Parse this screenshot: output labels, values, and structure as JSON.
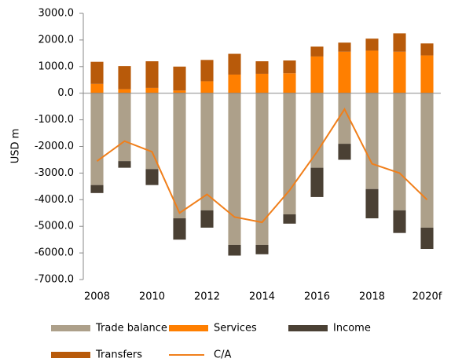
{
  "chart_data": {
    "type": "bar",
    "stacked": true,
    "ylabel": "USD m",
    "categories": [
      "2008",
      null,
      "2010",
      null,
      "2012",
      null,
      "2014",
      null,
      "2016",
      null,
      "2018",
      null,
      "2020f"
    ],
    "series": [
      {
        "name": "Trade balance",
        "color": "#ada08a",
        "values": [
          -3450,
          -2550,
          -2850,
          -4700,
          -4400,
          -5700,
          -5700,
          -4550,
          -2800,
          -1900,
          -3600,
          -4400,
          -5050
        ]
      },
      {
        "name": "Services",
        "color": "#ff7f00",
        "values": [
          350,
          150,
          200,
          100,
          450,
          700,
          730,
          750,
          1380,
          1560,
          1600,
          1560,
          1420
        ]
      },
      {
        "name": "Income",
        "color": "#4a4034",
        "values": [
          -300,
          -250,
          -600,
          -800,
          -650,
          -400,
          -350,
          -350,
          -1100,
          -600,
          -1100,
          -850,
          -800
        ]
      },
      {
        "name": "Transfers",
        "color": "#b85a0a",
        "values": [
          830,
          870,
          1000,
          900,
          800,
          780,
          470,
          480,
          370,
          340,
          450,
          690,
          450
        ]
      },
      {
        "name": "C/A",
        "type": "line",
        "color": "#f07f1b",
        "values": [
          -2550,
          -1800,
          -2200,
          -4500,
          -3800,
          -4650,
          -4850,
          -3650,
          -2200,
          -600,
          -2650,
          -3000,
          -4000
        ]
      }
    ],
    "ylim": [
      -7000,
      3000
    ],
    "yticks": [
      {
        "value": 3000,
        "label": "3000.0"
      },
      {
        "value": 2000,
        "label": "2000.0"
      },
      {
        "value": 1000,
        "label": "1000.0"
      },
      {
        "value": 0,
        "label": "0.0"
      },
      {
        "value": -1000,
        "label": "-1000.0"
      },
      {
        "value": -2000,
        "label": "-2000.0"
      },
      {
        "value": -3000,
        "label": "-3000.0"
      },
      {
        "value": -4000,
        "label": "-4000.0"
      },
      {
        "value": -5000,
        "label": "-5000.0"
      },
      {
        "value": -6000,
        "label": "-6000.0"
      },
      {
        "value": -7000,
        "label": "-7000.0"
      }
    ]
  }
}
